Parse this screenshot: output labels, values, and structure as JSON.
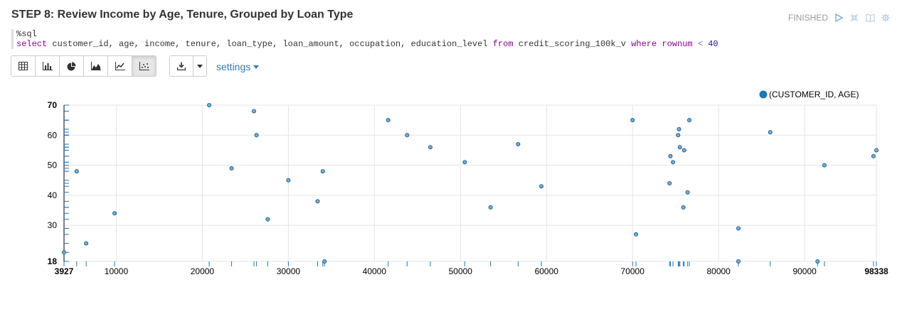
{
  "paragraph": {
    "title": "STEP 8: Review Income by Age, Tenure, Grouped by Loan Type",
    "status": "FINISHED",
    "icons": [
      "run-icon",
      "collapse-icon",
      "book-icon",
      "gear-icon"
    ]
  },
  "editor": {
    "line1": "%sql",
    "query": {
      "select_kw": "select",
      "columns": " customer_id, age, income, tenure, loan_type, loan_amount, occupation, education_level ",
      "from_kw": "from",
      "table": " credit_scoring_100k_v ",
      "where_kw": "where",
      "cond_col": " rownum ",
      "op": "<",
      "value": "40"
    }
  },
  "toolbar": {
    "buttons": [
      "table-icon",
      "bar-chart-icon",
      "pie-chart-icon",
      "area-chart-icon",
      "line-chart-icon",
      "scatter-chart-icon"
    ],
    "active": "scatter-chart-icon",
    "settings_label": "settings"
  },
  "chart_data": {
    "type": "scatter",
    "legend": {
      "label": "(CUSTOMER_ID, AGE)",
      "position": "top-right",
      "color": "#1f77b4"
    },
    "xlim": [
      3927,
      98338
    ],
    "ylim": [
      18,
      70
    ],
    "x_ticks": [
      3927,
      10000,
      20000,
      30000,
      40000,
      50000,
      60000,
      70000,
      80000,
      90000,
      98338
    ],
    "y_ticks": [
      18,
      30,
      40,
      50,
      60,
      70
    ],
    "grid": true,
    "point_color": "#6baed6",
    "points": [
      [
        3927,
        21
      ],
      [
        5400,
        48
      ],
      [
        6500,
        24
      ],
      [
        9800,
        34
      ],
      [
        20800,
        70
      ],
      [
        23400,
        49
      ],
      [
        26000,
        68
      ],
      [
        26300,
        60
      ],
      [
        27600,
        32
      ],
      [
        30000,
        45
      ],
      [
        33400,
        38
      ],
      [
        34000,
        48
      ],
      [
        34200,
        18
      ],
      [
        41600,
        65
      ],
      [
        43800,
        60
      ],
      [
        46500,
        56
      ],
      [
        50500,
        51
      ],
      [
        53500,
        36
      ],
      [
        56700,
        57
      ],
      [
        59400,
        43
      ],
      [
        70000,
        65
      ],
      [
        70400,
        27
      ],
      [
        74300,
        44
      ],
      [
        74400,
        53
      ],
      [
        74700,
        51
      ],
      [
        75300,
        60
      ],
      [
        75400,
        62
      ],
      [
        75500,
        56
      ],
      [
        75900,
        36
      ],
      [
        76000,
        55
      ],
      [
        76400,
        41
      ],
      [
        76600,
        65
      ],
      [
        82300,
        29
      ],
      [
        82300,
        18
      ],
      [
        86000,
        61
      ],
      [
        91500,
        18
      ],
      [
        92300,
        50
      ],
      [
        98000,
        53
      ],
      [
        98338,
        55
      ]
    ]
  }
}
